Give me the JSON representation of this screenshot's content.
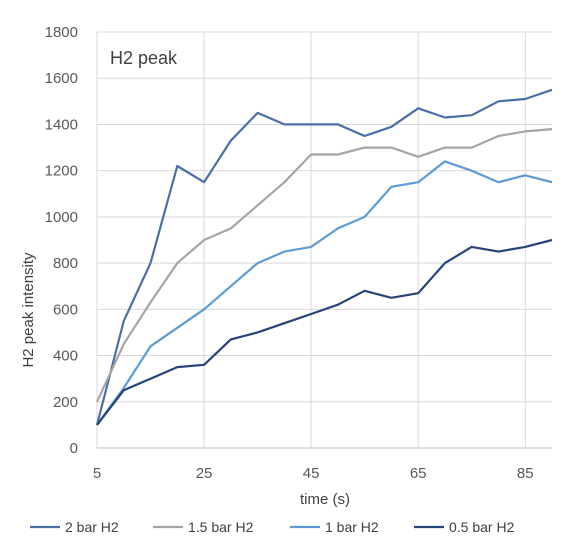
{
  "chart_data": {
    "type": "line",
    "title": "H2 peak",
    "xlabel": "time (s)",
    "ylabel": "H2 peak intensity",
    "xlim": [
      5,
      90
    ],
    "ylim": [
      0,
      1800
    ],
    "xticks": [
      5,
      25,
      45,
      65,
      85
    ],
    "yticks": [
      0,
      200,
      400,
      600,
      800,
      1000,
      1200,
      1400,
      1600,
      1800
    ],
    "grid": "vertical and horizontal major gridlines",
    "legend_position": "bottom",
    "x": [
      5,
      10,
      15,
      20,
      25,
      30,
      35,
      40,
      45,
      50,
      55,
      60,
      65,
      70,
      75,
      80,
      85,
      90
    ],
    "series": [
      {
        "name": "2 bar H2",
        "color": "#4a6fa5",
        "values": [
          100,
          550,
          800,
          1220,
          1150,
          1330,
          1450,
          1400,
          1400,
          1400,
          1350,
          1390,
          1470,
          1430,
          1440,
          1500,
          1510,
          1550
        ]
      },
      {
        "name": "1.5 bar H2",
        "color": "#a5a5a5",
        "values": [
          200,
          450,
          630,
          800,
          900,
          950,
          1050,
          1150,
          1270,
          1270,
          1300,
          1300,
          1260,
          1300,
          1300,
          1350,
          1370,
          1380
        ]
      },
      {
        "name": "1 bar H2",
        "color": "#5b9bd5",
        "values": [
          100,
          260,
          440,
          520,
          600,
          700,
          800,
          850,
          870,
          950,
          1000,
          1130,
          1150,
          1240,
          1200,
          1150,
          1180,
          1150
        ]
      },
      {
        "name": "0.5 bar H2",
        "color": "#264478",
        "values": [
          100,
          250,
          300,
          350,
          360,
          470,
          500,
          540,
          580,
          620,
          680,
          650,
          670,
          800,
          870,
          850,
          870,
          900
        ]
      }
    ]
  }
}
